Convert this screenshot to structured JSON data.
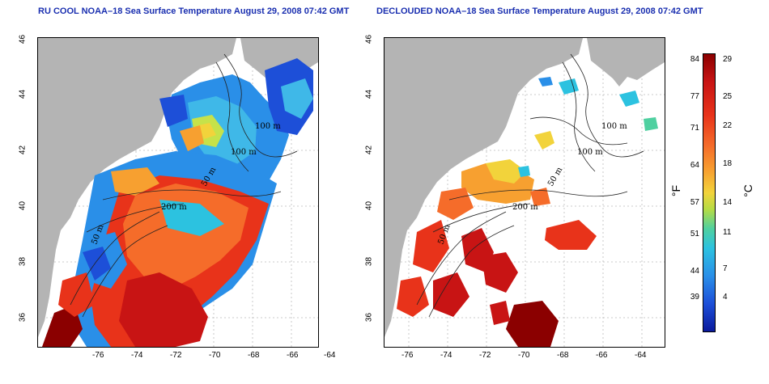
{
  "left_panel": {
    "title": "RU COOL NOAA–18 Sea Surface Temperature August 29, 2008 07:42 GMT"
  },
  "right_panel": {
    "title": "DECLOUDED NOAA–18 Sea Surface Temperature August 29, 2008 07:42 GMT"
  },
  "axes": {
    "lon_ticks": [
      "-76",
      "-74",
      "-72",
      "-70",
      "-68",
      "-66",
      "-64"
    ],
    "lat_ticks": [
      "46",
      "44",
      "42",
      "40",
      "38",
      "36"
    ]
  },
  "contour_labels": {
    "c100a": "100 m",
    "c100b": "100 m",
    "c50": "50 m",
    "c200": "200 m",
    "c50b": "50 m",
    "c200b": "200 m"
  },
  "colorbar": {
    "fahrenheit_label": "°F",
    "celsius_label": "°C",
    "fahrenheit_ticks": [
      "84",
      "77",
      "71",
      "64",
      "57",
      "51",
      "44",
      "39"
    ],
    "celsius_ticks": [
      "29",
      "25",
      "22",
      "18",
      "14",
      "11",
      "7",
      "4"
    ]
  },
  "colors": {
    "land": "#b4b4b4",
    "title": "#1a2fb0"
  }
}
